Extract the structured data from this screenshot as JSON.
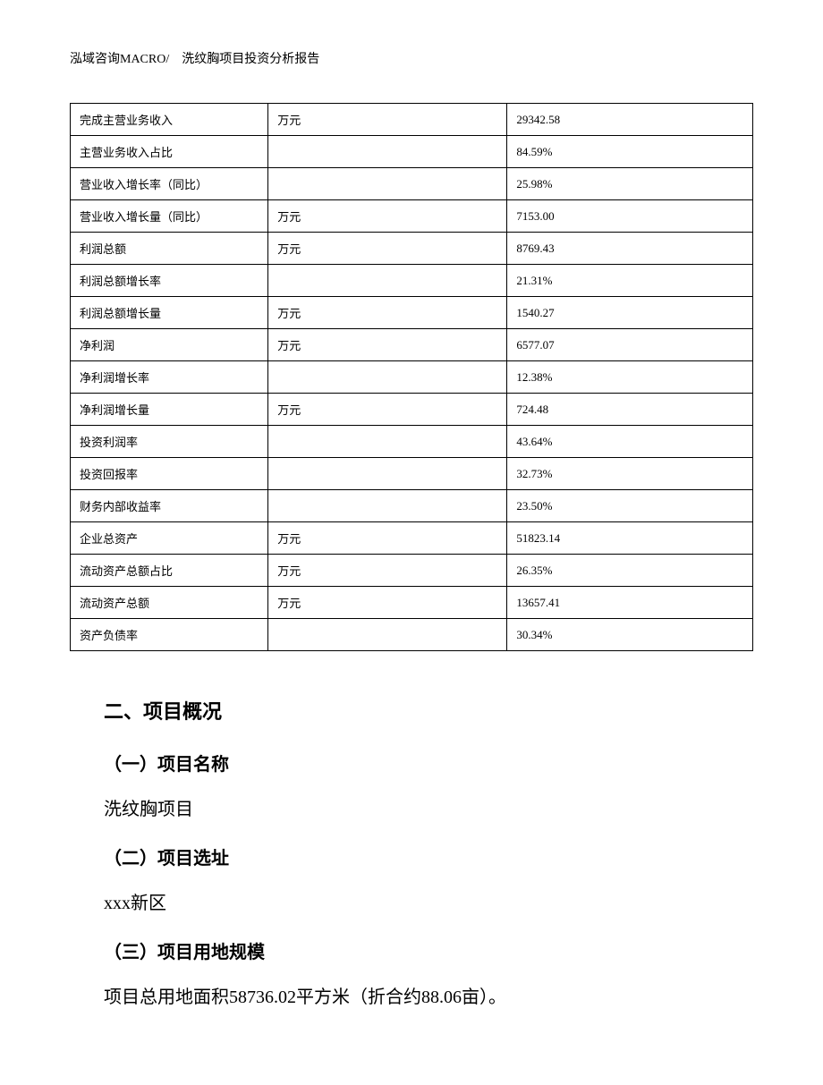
{
  "header": {
    "company": "泓域咨询MACRO/",
    "title": "洗纹胸项目投资分析报告"
  },
  "table": {
    "rows": [
      {
        "label": "完成主营业务收入",
        "unit": "万元",
        "value": "29342.58"
      },
      {
        "label": "主营业务收入占比",
        "unit": "",
        "value": "84.59%"
      },
      {
        "label": "营业收入增长率（同比）",
        "unit": "",
        "value": "25.98%"
      },
      {
        "label": "营业收入增长量（同比）",
        "unit": "万元",
        "value": "7153.00"
      },
      {
        "label": "利润总额",
        "unit": "万元",
        "value": "8769.43"
      },
      {
        "label": "利润总额增长率",
        "unit": "",
        "value": "21.31%"
      },
      {
        "label": "利润总额增长量",
        "unit": "万元",
        "value": "1540.27"
      },
      {
        "label": "净利润",
        "unit": "万元",
        "value": "6577.07"
      },
      {
        "label": "净利润增长率",
        "unit": "",
        "value": "12.38%"
      },
      {
        "label": "净利润增长量",
        "unit": "万元",
        "value": "724.48"
      },
      {
        "label": "投资利润率",
        "unit": "",
        "value": "43.64%"
      },
      {
        "label": "投资回报率",
        "unit": "",
        "value": "32.73%"
      },
      {
        "label": "财务内部收益率",
        "unit": "",
        "value": "23.50%"
      },
      {
        "label": "企业总资产",
        "unit": "万元",
        "value": "51823.14"
      },
      {
        "label": "流动资产总额占比",
        "unit": "万元",
        "value": "26.35%"
      },
      {
        "label": "流动资产总额",
        "unit": "万元",
        "value": "13657.41"
      },
      {
        "label": "资产负债率",
        "unit": "",
        "value": "30.34%"
      }
    ]
  },
  "sections": {
    "main_heading": "二、项目概况",
    "sub1_heading": "（一）项目名称",
    "sub1_body": "洗纹胸项目",
    "sub2_heading": "（二）项目选址",
    "sub2_body": "xxx新区",
    "sub3_heading": "（三）项目用地规模",
    "sub3_body": "项目总用地面积58736.02平方米（折合约88.06亩）。"
  }
}
